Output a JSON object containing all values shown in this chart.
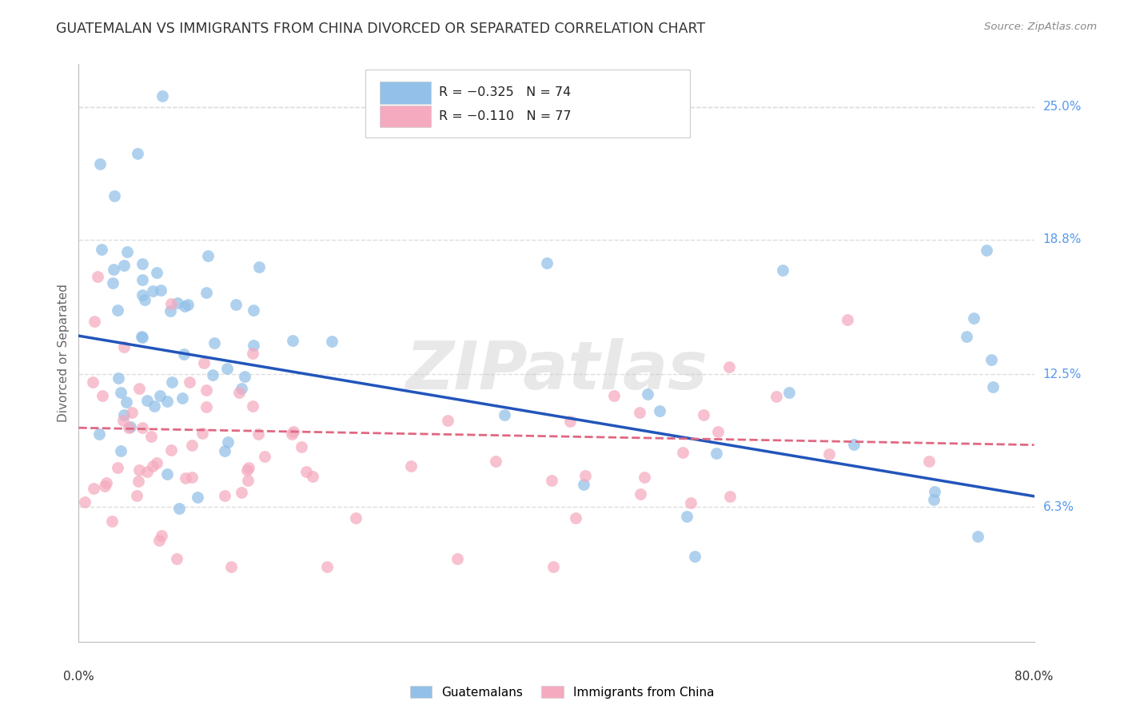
{
  "title": "GUATEMALAN VS IMMIGRANTS FROM CHINA DIVORCED OR SEPARATED CORRELATION CHART",
  "source": "Source: ZipAtlas.com",
  "ylabel": "Divorced or Separated",
  "ytick_labels": [
    "25.0%",
    "18.8%",
    "12.5%",
    "6.3%"
  ],
  "ytick_vals": [
    0.25,
    0.188,
    0.125,
    0.063
  ],
  "xtick_left": "0.0%",
  "xtick_right": "80.0%",
  "y_min": 0.0,
  "y_max": 0.27,
  "x_min": 0.0,
  "x_max": 0.8,
  "blue_r": -0.325,
  "blue_n": 74,
  "pink_r": -0.11,
  "pink_n": 77,
  "blue_line_y0": 0.143,
  "blue_line_y1": 0.068,
  "pink_line_y0": 0.1,
  "pink_line_y1": 0.092,
  "legend_label_blue": "Guatemalans",
  "legend_label_pink": "Immigrants from China",
  "blue_dot_color": "#92C0E8",
  "pink_dot_color": "#F5AABF",
  "blue_line_color": "#2255BB",
  "pink_line_color": "#E06882",
  "watermark_color": "#CCCCCC",
  "grid_color": "#DDDDDD",
  "right_label_color": "#5599EE",
  "bg_color": "#FFFFFF",
  "title_color": "#333333",
  "source_color": "#888888",
  "axis_color": "#BBBBBB",
  "legend_edge_color": "#CCCCCC"
}
